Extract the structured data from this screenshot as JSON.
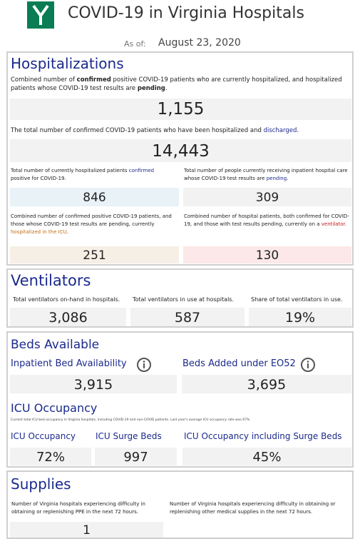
{
  "header": {
    "title": "COVID-19 in Virginia Hospitals",
    "as_of_label": "As of:",
    "as_of_date": "August 23, 2020"
  },
  "hospitalizations": {
    "title": "Hospitalizations",
    "combined": {
      "desc": [
        "Combined number of ",
        "confirmed",
        " positive COVID-19 patients who are currently hospitalized, and hospitalized patients whose COVID-19 test results are ",
        "pending",
        "."
      ],
      "value": "1,155"
    },
    "discharged": {
      "desc": [
        "The total number of confirmed COVID-19 patients who have been hospitalized and ",
        "discharged",
        "."
      ],
      "value": "14,443"
    },
    "confirmed": {
      "desc": [
        "Total number of currently hospitalized patients ",
        "confirmed",
        " positive for COVID-19."
      ],
      "value": "846"
    },
    "pending": {
      "desc": [
        "Total number of people currently receiving inpatient hospital care whose COVID-19 test results are ",
        "pending",
        "."
      ],
      "value": "309"
    },
    "icu": {
      "desc": [
        "Combined number of confirmed positive COVID-19 patients, and those whose COVID-19 test results are pending, currently ",
        "hospitalized in the ICU",
        "."
      ],
      "value": "251"
    },
    "ventilator": {
      "desc": [
        "Combined number of hospital patients, both confirmed for COVID-19, and those with test results pending, currently on a ",
        "ventilator",
        "."
      ],
      "value": "130"
    }
  },
  "ventilators": {
    "title": "Ventilators",
    "items": [
      {
        "label": "Total ventilators on-hand in hospitals.",
        "value": "3,086"
      },
      {
        "label": "Total ventilators in use at hospitals.",
        "value": "587"
      },
      {
        "label": "Share of total ventilators in use.",
        "value": "19%"
      }
    ]
  },
  "beds": {
    "title": "Beds Available",
    "items": [
      {
        "label": "Inpatient Bed Availability",
        "value": "3,915"
      },
      {
        "label": "Beds Added under EO52",
        "value": "3,695"
      }
    ],
    "icu_title": "ICU Occupancy",
    "icu_note": "Current total ICU bed occupancy in Virginia hospitals, including COVID-19 and non-COVID patients. Last year's average ICU occupancy rate was 67%.",
    "icu_items": [
      {
        "label": "ICU Occupancy",
        "value": "72%"
      },
      {
        "label": "ICU Surge Beds",
        "value": "997"
      },
      {
        "label": "ICU Occupancy including Surge Beds",
        "value": "45%"
      }
    ]
  },
  "supplies": {
    "title": "Supplies",
    "items": [
      {
        "label": "Number of Virginia hospitals experiencing difficulty in obtaining or replenishing PPE in the next 72 hours.",
        "value": "1"
      },
      {
        "label": "Number of Virginia hospitals experiencing difficulty in obtaining or replenishing other medical supplies in the next 72 hours."
      }
    ]
  }
}
